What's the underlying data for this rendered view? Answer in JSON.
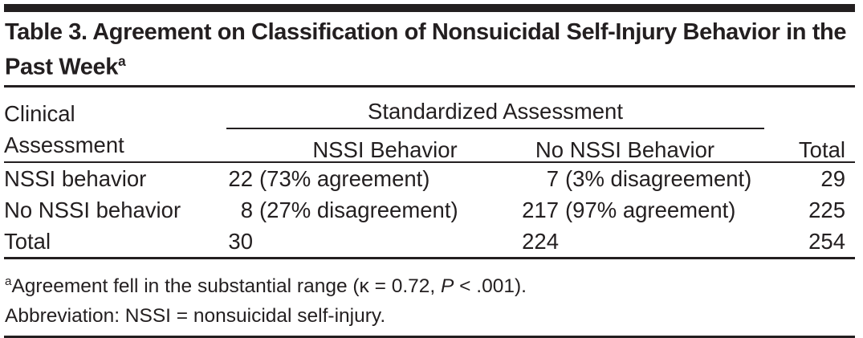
{
  "title": {
    "text": "Table 3. Agreement on Classification of Nonsuicidal Self-Injury Behavior in the Past Week",
    "superscript": "a"
  },
  "table": {
    "stub_header": "Clinical Assessment",
    "spanner_header": "Standardized Assessment",
    "sub_columns": [
      "NSSI Behavior",
      "No NSSI Behavior"
    ],
    "total_header": "Total",
    "rows": [
      {
        "label": "NSSI behavior",
        "nssi": {
          "value": "22",
          "note": "(73% agreement)"
        },
        "no_nssi": {
          "value": "7",
          "note": "(3% disagreement)"
        },
        "total": "29"
      },
      {
        "label": "No NSSI behavior",
        "nssi": {
          "value": "8",
          "note": "(27% disagreement)"
        },
        "no_nssi": {
          "value": "217",
          "note": "(97% agreement)"
        },
        "total": "225"
      },
      {
        "label": "Total",
        "nssi": {
          "value": "30",
          "note": ""
        },
        "no_nssi": {
          "value": "224",
          "note": ""
        },
        "total": "254"
      }
    ]
  },
  "footnotes": {
    "marker": "a",
    "agreement_prefix": "Agreement fell in the substantial range (κ = 0.72, ",
    "agreement_stat_italic": "P",
    "agreement_suffix": " < .001).",
    "abbreviation": "Abbreviation: NSSI = nonsuicidal self-injury."
  },
  "colors": {
    "text": "#231f20",
    "rule": "#231f20",
    "background": "#ffffff"
  }
}
